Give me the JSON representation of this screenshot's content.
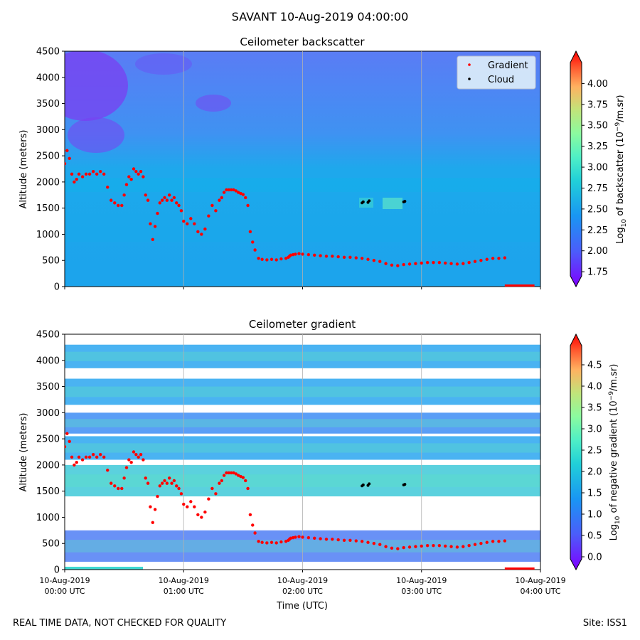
{
  "figure": {
    "title": "SAVANT 10-Aug-2019 04:00:00",
    "footer_left": "REAL TIME DATA, NOT CHECKED FOR QUALITY",
    "footer_right": "Site: ISS1"
  },
  "colors": {
    "gradient_marker": "#ff0000",
    "cloud_marker": "#000000",
    "background_fill": "#15a6ea",
    "low_fill": "#2f9ff0",
    "upper_fill": "#4f86f4",
    "violet_patch": "#7a3ff2"
  },
  "chart_data": [
    {
      "type": "heatmap",
      "title": "Ceilometer backscatter",
      "ylabel": "Altitude (meters)",
      "xlabel": "",
      "xlim": [
        0,
        4
      ],
      "ylim": [
        0,
        4500
      ],
      "yticks": [
        0,
        500,
        1000,
        1500,
        2000,
        2500,
        3000,
        3500,
        4000,
        4500
      ],
      "xtick_positions": [
        0,
        1,
        2,
        3,
        4
      ],
      "grid": "vertical",
      "legend": {
        "position": "top-right",
        "entries": [
          "Gradient",
          "Cloud"
        ]
      },
      "colorbar": {
        "label": "Log10 of backscatter (10^-9/m.sr)",
        "label_main": "Log",
        "label_sub": "10",
        "label_tail": " of backscatter (10",
        "label_sup": "−9",
        "label_end": "/m.sr)",
        "range": [
          1.7,
          4.25
        ],
        "ticks": [
          "1.75",
          "2.00",
          "2.25",
          "2.50",
          "2.75",
          "3.00",
          "3.25",
          "3.50",
          "3.75",
          "4.00"
        ],
        "tick_values": [
          1.75,
          2.0,
          2.25,
          2.5,
          2.75,
          3.0,
          3.25,
          3.5,
          3.75,
          4.0
        ]
      }
    },
    {
      "type": "heatmap",
      "title": "Ceilometer gradient",
      "ylabel": "Altitude (meters)",
      "xlabel": "Time (UTC)",
      "xlim": [
        0,
        4
      ],
      "ylim": [
        0,
        4500
      ],
      "yticks": [
        0,
        500,
        1000,
        1500,
        2000,
        2500,
        3000,
        3500,
        4000,
        4500
      ],
      "xticks": [
        [
          "10-Aug-2019",
          "00:00 UTC"
        ],
        [
          "10-Aug-2019",
          "01:00 UTC"
        ],
        [
          "10-Aug-2019",
          "02:00 UTC"
        ],
        [
          "10-Aug-2019",
          "03:00 UTC"
        ],
        [
          "10-Aug-2019",
          "04:00 UTC"
        ]
      ],
      "xtick_positions": [
        0,
        1,
        2,
        3,
        4
      ],
      "grid": "vertical",
      "colorbar": {
        "label": "Log10 of negative gradient (10^-9/m.sr)",
        "label_main": "Log",
        "label_sub": "10",
        "label_tail": " of negative gradient (10",
        "label_sup": "−9",
        "label_end": "/m.sr)",
        "range": [
          -0.05,
          4.95
        ],
        "ticks": [
          "0.0",
          "0.5",
          "1.0",
          "1.5",
          "2.0",
          "2.5",
          "3.0",
          "3.5",
          "4.0",
          "4.5"
        ],
        "tick_values": [
          0,
          0.5,
          1.0,
          1.5,
          2.0,
          2.5,
          3.0,
          3.5,
          4.0,
          4.5
        ]
      },
      "layers_altitude_m": [
        {
          "name": "surface-layer",
          "range": [
            150,
            750
          ],
          "level": 0.9
        },
        {
          "name": "layer-1500",
          "range": [
            1400,
            2000
          ],
          "level": 1.4
        },
        {
          "name": "layer-2300",
          "range": [
            2100,
            2550
          ],
          "level": 1.2
        },
        {
          "name": "layer-2800",
          "range": [
            2600,
            3000
          ],
          "level": 1.1
        },
        {
          "name": "layer-3300",
          "range": [
            3150,
            3650
          ],
          "level": 1.3
        },
        {
          "name": "layer-4000",
          "range": [
            3850,
            4300
          ],
          "level": 1.2
        }
      ]
    }
  ],
  "gradient_points": {
    "series": "Gradient",
    "x_hours": [
      0.0,
      0.02,
      0.04,
      0.06,
      0.08,
      0.1,
      0.12,
      0.15,
      0.18,
      0.21,
      0.24,
      0.27,
      0.3,
      0.33,
      0.36,
      0.39,
      0.42,
      0.45,
      0.48,
      0.5,
      0.52,
      0.54,
      0.56,
      0.58,
      0.6,
      0.62,
      0.64,
      0.66,
      0.68,
      0.7,
      0.72,
      0.74,
      0.76,
      0.78,
      0.8,
      0.82,
      0.84,
      0.86,
      0.88,
      0.9,
      0.92,
      0.94,
      0.96,
      0.98,
      1.0,
      1.03,
      1.06,
      1.09,
      1.12,
      1.15,
      1.18,
      1.21,
      1.24,
      1.27,
      1.3,
      1.32,
      1.34,
      1.36,
      1.38,
      1.4,
      1.42,
      1.44,
      1.46,
      1.48,
      1.5,
      1.52,
      1.54,
      1.56,
      1.58,
      1.6,
      1.63,
      1.66,
      1.7,
      1.74,
      1.78,
      1.82,
      1.86,
      1.88,
      1.89,
      1.9,
      1.92,
      1.94,
      1.97,
      2.0,
      2.05,
      2.1,
      2.15,
      2.2,
      2.25,
      2.3,
      2.35,
      2.4,
      2.45,
      2.5,
      2.55,
      2.6,
      2.65,
      2.7,
      2.75,
      2.8,
      2.85,
      2.9,
      2.95,
      3.0,
      3.05,
      3.1,
      3.15,
      3.2,
      3.25,
      3.3,
      3.35,
      3.4,
      3.45,
      3.5,
      3.55,
      3.6,
      3.65,
      3.7
    ],
    "y_m": [
      2350,
      2600,
      2450,
      2150,
      2000,
      2050,
      2150,
      2100,
      2150,
      2150,
      2200,
      2150,
      2200,
      2150,
      1900,
      1650,
      1600,
      1550,
      1550,
      1750,
      1950,
      2100,
      2050,
      2250,
      2200,
      2150,
      2200,
      2100,
      1750,
      1650,
      1200,
      900,
      1150,
      1400,
      1600,
      1650,
      1700,
      1650,
      1750,
      1650,
      1700,
      1600,
      1550,
      1450,
      1250,
      1200,
      1300,
      1200,
      1050,
      1000,
      1100,
      1350,
      1550,
      1450,
      1650,
      1700,
      1800,
      1850,
      1850,
      1850,
      1850,
      1830,
      1800,
      1780,
      1760,
      1700,
      1550,
      1050,
      850,
      700,
      540,
      520,
      510,
      520,
      510,
      530,
      540,
      560,
      580,
      600,
      610,
      620,
      630,
      620,
      610,
      600,
      590,
      580,
      580,
      570,
      560,
      560,
      550,
      540,
      520,
      500,
      480,
      440,
      410,
      400,
      420,
      430,
      440,
      450,
      460,
      460,
      460,
      450,
      440,
      430,
      440,
      460,
      480,
      500,
      520,
      540,
      540,
      550
    ],
    "pixel_x_extra": [],
    "bottom_strip_x": [
      3.7,
      3.95
    ]
  },
  "cloud_points": {
    "series": "Cloud",
    "x_hours": [
      2.5,
      2.51,
      2.55,
      2.56,
      2.85,
      2.86
    ],
    "y_m": [
      1600,
      1620,
      1610,
      1640,
      1620,
      1630
    ]
  }
}
